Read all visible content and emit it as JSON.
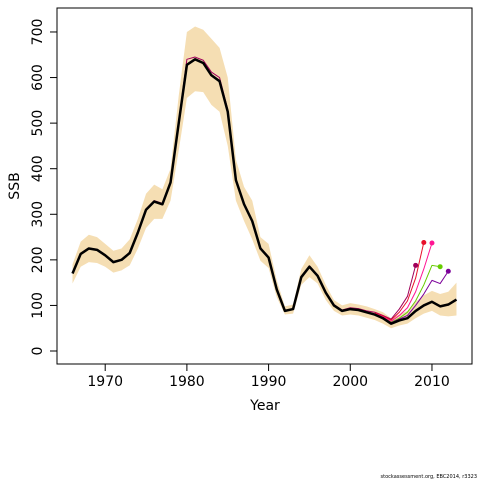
{
  "chart_data": {
    "type": "line",
    "xlabel": "Year",
    "ylabel": "SSB",
    "footnote": "stockassessment.org, EBC2014, r3323",
    "xlim": [
      1964.1,
      2014.9
    ],
    "ylim": [
      -28.5,
      752.6
    ],
    "xticks": [
      1970,
      1980,
      1990,
      2000,
      2010
    ],
    "yticks": [
      0,
      100,
      200,
      300,
      400,
      500,
      600,
      700
    ],
    "band_color": "#f5deb3",
    "x": [
      1966,
      1967,
      1968,
      1969,
      1970,
      1971,
      1972,
      1973,
      1974,
      1975,
      1976,
      1977,
      1978,
      1979,
      1980,
      1981,
      1982,
      1983,
      1984,
      1985,
      1986,
      1987,
      1988,
      1989,
      1990,
      1991,
      1992,
      1993,
      1994,
      1995,
      1996,
      1997,
      1998,
      1999,
      2000,
      2001,
      2002,
      2003,
      2004,
      2005,
      2006,
      2007,
      2008,
      2009,
      2010,
      2011,
      2012,
      2013
    ],
    "band_upper": [
      190,
      240,
      255,
      250,
      235,
      220,
      225,
      245,
      290,
      345,
      365,
      355,
      400,
      560,
      700,
      712,
      705,
      685,
      665,
      600,
      420,
      360,
      330,
      250,
      235,
      155,
      98,
      102,
      180,
      210,
      185,
      145,
      112,
      100,
      105,
      102,
      98,
      92,
      85,
      72,
      80,
      88,
      108,
      122,
      132,
      125,
      130,
      150
    ],
    "band_lower": [
      148,
      185,
      195,
      193,
      185,
      172,
      177,
      188,
      225,
      270,
      290,
      290,
      330,
      440,
      555,
      570,
      568,
      540,
      525,
      450,
      330,
      285,
      245,
      198,
      182,
      118,
      80,
      82,
      145,
      162,
      148,
      112,
      88,
      78,
      80,
      78,
      73,
      68,
      60,
      50,
      56,
      60,
      72,
      82,
      88,
      78,
      76,
      78
    ],
    "series": [
      {
        "color": "#a0005a",
        "x": [
          1966,
          1967,
          1968,
          1969,
          1970,
          1971,
          1972,
          1973,
          1974,
          1975,
          1976,
          1977,
          1978,
          1979,
          1980,
          1981,
          1982,
          1983,
          1984,
          1985,
          1986,
          1987,
          1988,
          1989,
          1990,
          1991,
          1992,
          1993,
          1994,
          1995,
          1996,
          1997,
          1998,
          1999,
          2000,
          2001,
          2002,
          2003,
          2004,
          2005,
          2006,
          2007,
          2008
        ],
        "values": [
          171,
          214,
          226,
          223,
          211,
          196,
          201,
          216,
          262,
          312,
          330,
          324,
          372,
          505,
          640,
          645,
          638,
          612,
          600,
          530,
          378,
          324,
          287,
          227,
          207,
          136,
          89,
          93,
          164,
          187,
          167,
          130,
          102,
          90,
          95,
          93,
          88,
          85,
          78,
          70,
          92,
          120,
          188
        ]
      },
      {
        "color": "#e8102a",
        "x": [
          2003,
          2004,
          2005,
          2006,
          2007,
          2008,
          2009
        ],
        "values": [
          84,
          77,
          68,
          85,
          110,
          160,
          238
        ]
      },
      {
        "color": "#ff1493",
        "x": [
          2003,
          2004,
          2005,
          2006,
          2007,
          2008,
          2009,
          2010
        ],
        "values": [
          82,
          75,
          65,
          78,
          95,
          130,
          180,
          237
        ]
      },
      {
        "color": "#66cc00",
        "x": [
          2003,
          2004,
          2005,
          2006,
          2007,
          2008,
          2009,
          2010,
          2011
        ],
        "values": [
          80,
          73,
          63,
          72,
          85,
          110,
          145,
          188,
          185
        ]
      },
      {
        "color": "#7b0099",
        "x": [
          2003,
          2004,
          2005,
          2006,
          2007,
          2008,
          2009,
          2010,
          2011,
          2012
        ],
        "values": [
          80,
          73,
          62,
          70,
          78,
          100,
          125,
          155,
          148,
          175
        ]
      },
      {
        "color": "#000000",
        "width": 2.5,
        "x": [
          1966,
          1967,
          1968,
          1969,
          1970,
          1971,
          1972,
          1973,
          1974,
          1975,
          1976,
          1977,
          1978,
          1979,
          1980,
          1981,
          1982,
          1983,
          1984,
          1985,
          1986,
          1987,
          1988,
          1989,
          1990,
          1991,
          1992,
          1993,
          1994,
          1995,
          1996,
          1997,
          1998,
          1999,
          2000,
          2001,
          2002,
          2003,
          2004,
          2005,
          2006,
          2007,
          2008,
          2009,
          2010,
          2011,
          2012,
          2013
        ],
        "values": [
          170,
          213,
          225,
          222,
          210,
          195,
          200,
          215,
          260,
          310,
          328,
          322,
          370,
          500,
          628,
          640,
          632,
          605,
          592,
          525,
          375,
          322,
          285,
          225,
          205,
          135,
          88,
          92,
          162,
          185,
          165,
          128,
          100,
          88,
          92,
          90,
          85,
          80,
          72,
          60,
          67,
          72,
          88,
          100,
          108,
          98,
          102,
          113
        ]
      }
    ]
  }
}
